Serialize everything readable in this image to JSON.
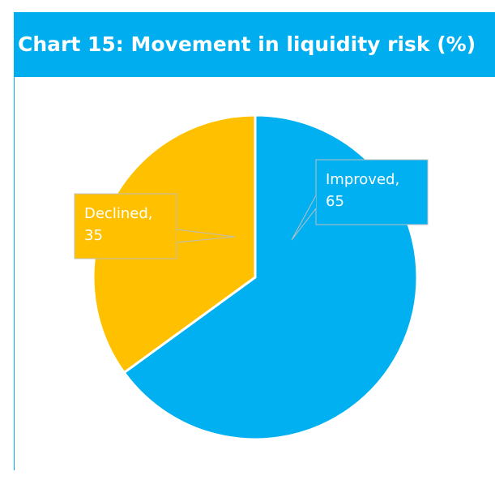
{
  "chart_data": {
    "type": "pie",
    "title": "Chart 15: Movement in liquidity risk (%)",
    "categories": [
      "Improved",
      "Declined"
    ],
    "values": [
      65,
      35
    ],
    "colors": [
      "#00b0f0",
      "#ffc000"
    ]
  }
}
